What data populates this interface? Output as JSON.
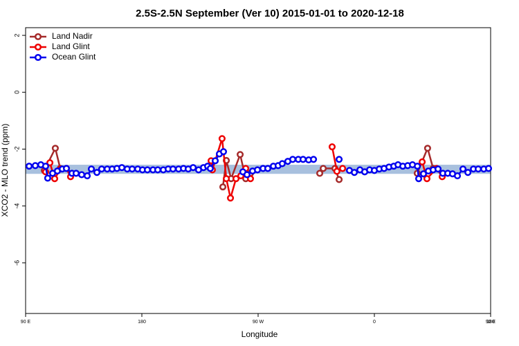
{
  "chart_data": {
    "type": "line",
    "title": "2.5S-2.5N September (Ver 10)   2015-01-01 to 2020-12-18",
    "xlabel": "Longitude",
    "ylabel": "XCO2 - MLO trend (ppm)",
    "xlim": [
      90,
      450
    ],
    "ylim": [
      -7.78,
      2.27
    ],
    "xticks": [
      {
        "value": 90,
        "label": "90 E"
      },
      180,
      {
        "value": 270,
        "label": "90 W"
      },
      {
        "value": 360,
        "label": "0"
      },
      {
        "value": 450,
        "label": "90 E"
      },
      {
        "value": 540,
        "label": "180"
      }
    ],
    "yticks": [
      2,
      0,
      -2,
      -4,
      -6
    ],
    "band": [
      -2.87,
      -2.55
    ],
    "band_color": "#a8c0de",
    "legend": "top-left",
    "series": [
      {
        "name": "Land Nadir",
        "color": "#a52a2a",
        "x": [
          104.5,
          113,
          116.8,
          null,
          242.7,
          245.4,
          249.1,
          256.1,
          260.4,
          264.1,
          null,
          317.7,
          320.4,
          329.5,
          332.7,
          null,
          393.2,
          401.2,
          405.5
        ],
        "values": [
          -2.75,
          -1.97,
          -2.68,
          null,
          -3.33,
          -2.4,
          -3.04,
          -2.19,
          -3.04,
          -2.85,
          null,
          -2.85,
          -2.68,
          -2.68,
          -3.07,
          null,
          -2.85,
          -1.97,
          -2.68
        ]
      },
      {
        "name": "Land Glint",
        "color": "#ee0000",
        "x": [
          105.5,
          108.8,
          112.5,
          117,
          121.6,
          124.8,
          null,
          233.6,
          234.6,
          242.1,
          245.4,
          248.6,
          252.9,
          256.6,
          260.4,
          264.1,
          null,
          327.3,
          331,
          335.4,
          null,
          397,
          400.7,
          408.2,
          412.5
        ],
        "values": [
          -2.8,
          -2.48,
          -3.04,
          -2.7,
          -2.68,
          -2.97,
          null,
          -2.41,
          -2.73,
          -1.63,
          -3.04,
          -3.72,
          -3.04,
          -2.94,
          -2.68,
          -3.04,
          null,
          -1.92,
          -2.78,
          -2.68,
          null,
          -2.45,
          -3.04,
          -2.68,
          -2.97
        ]
      },
      {
        "name": "Ocean Glint",
        "color": "#0000ee",
        "x": [
          92.7,
          97.5,
          101.8,
          105.5,
          107.1,
          110.9,
          114.6,
          118.4,
          121.6,
          125.9,
          129.1,
          133.4,
          137.7,
          140.9,
          145.2,
          148.9,
          153.2,
          157,
          160.7,
          164.5,
          168.7,
          172.5,
          176.8,
          180.5,
          184.3,
          188.6,
          192.3,
          196.6,
          200.4,
          204.1,
          208.4,
          212.2,
          215.9,
          219.7,
          223.9,
          227.7,
          230.9,
          233,
          236.8,
          240,
          243.2,
          null,
          258.2,
          261.4,
          265.7,
          269.5,
          273.8,
          277.5,
          281.8,
          285.5,
          288.7,
          293,
          296.8,
          301.1,
          304.8,
          309.1,
          312.9,
          null,
          332.7,
          null,
          340.7,
          344.5,
          348.8,
          352.5,
          356.3,
          360,
          363.8,
          367.5,
          371.3,
          375,
          378.3,
          382,
          385.8,
          389.5,
          393.3,
          394.3,
          398,
          401.8,
          405.5,
          409.3,
          413,
          416.8,
          420.5,
          424.3,
          428.6,
          432.4,
          436.7,
          440.4,
          444.7,
          448.4
        ],
        "values": [
          -2.6,
          -2.58,
          -2.55,
          -2.6,
          -3.02,
          -2.85,
          -2.77,
          -2.7,
          -2.68,
          -2.85,
          -2.85,
          -2.9,
          -2.94,
          -2.7,
          -2.82,
          -2.7,
          -2.7,
          -2.7,
          -2.68,
          -2.65,
          -2.7,
          -2.7,
          -2.7,
          -2.73,
          -2.73,
          -2.73,
          -2.73,
          -2.73,
          -2.7,
          -2.7,
          -2.7,
          -2.68,
          -2.7,
          -2.65,
          -2.73,
          -2.65,
          -2.6,
          -2.68,
          -2.41,
          -2.17,
          -2.09,
          null,
          -2.8,
          -2.9,
          -2.77,
          -2.73,
          -2.68,
          -2.68,
          -2.6,
          -2.58,
          -2.51,
          -2.43,
          -2.36,
          -2.36,
          -2.36,
          -2.38,
          -2.36,
          null,
          -2.36,
          null,
          -2.75,
          -2.82,
          -2.73,
          -2.8,
          -2.73,
          -2.75,
          -2.7,
          -2.68,
          -2.63,
          -2.6,
          -2.55,
          -2.6,
          -2.58,
          -2.55,
          -2.6,
          -3.04,
          -2.87,
          -2.77,
          -2.73,
          -2.7,
          -2.85,
          -2.85,
          -2.87,
          -2.94,
          -2.7,
          -2.82,
          -2.7,
          -2.7,
          -2.7,
          -2.68
        ]
      }
    ]
  }
}
